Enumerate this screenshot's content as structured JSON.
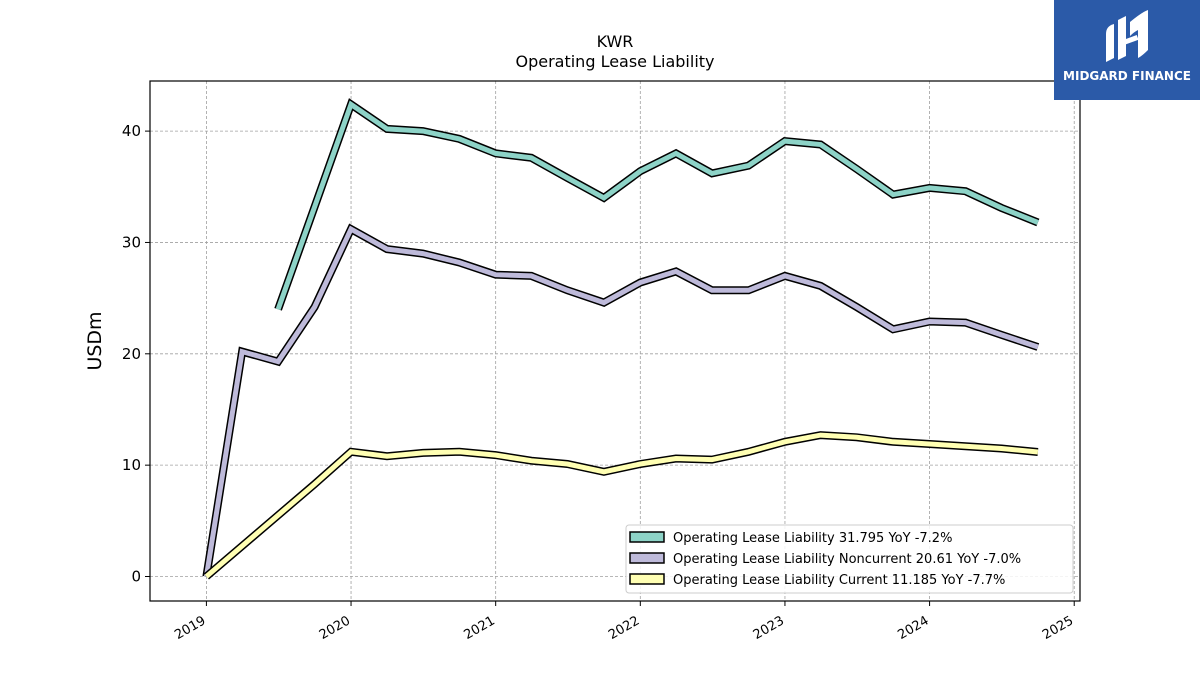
{
  "chart_data": {
    "type": "line",
    "title": "KWR",
    "subtitle": "Operating Lease Liability",
    "ylabel": "USDm",
    "xlabel": "",
    "ylim": [
      -2.2,
      44.5
    ],
    "xlim": [
      2018.61,
      2025.04
    ],
    "yticks": [
      0,
      10,
      20,
      30,
      40
    ],
    "xticks": [
      "2019",
      "2020",
      "2021",
      "2022",
      "2023",
      "2024",
      "2025"
    ],
    "grid": true,
    "legend_position": "lower-right",
    "series": [
      {
        "name": "Operating Lease Liability",
        "legend_label": "Operating Lease Liability  31.795 YoY -7.2%",
        "color": "#8dd3c7",
        "x": [
          "2019-07-01",
          "2019-10-01",
          "2020-01-01",
          "2020-04-01",
          "2020-07-01",
          "2020-10-01",
          "2021-01-01",
          "2021-04-01",
          "2021-07-01",
          "2021-10-01",
          "2022-01-01",
          "2022-04-01",
          "2022-07-01",
          "2022-10-01",
          "2023-01-01",
          "2023-04-01",
          "2023-07-01",
          "2023-10-01",
          "2024-01-01",
          "2024-04-01",
          "2024-07-01",
          "2024-10-01"
        ],
        "values": [
          24.0,
          33.2,
          42.4,
          40.2,
          40.0,
          39.3,
          38.0,
          37.6,
          35.8,
          34.0,
          36.4,
          38.0,
          36.2,
          36.9,
          39.1,
          38.8,
          36.6,
          34.3,
          34.9,
          34.6,
          33.1,
          31.795
        ]
      },
      {
        "name": "Operating Lease Liability Noncurrent",
        "legend_label": "Operating Lease Liability Noncurrent  20.61 YoY -7.0%",
        "color": "#bebada",
        "x": [
          "2019-01-01",
          "2019-04-01",
          "2019-07-01",
          "2019-10-01",
          "2020-01-01",
          "2020-04-01",
          "2020-07-01",
          "2020-10-01",
          "2021-01-01",
          "2021-04-01",
          "2021-07-01",
          "2021-10-01",
          "2022-01-01",
          "2022-04-01",
          "2022-07-01",
          "2022-10-01",
          "2023-01-01",
          "2023-04-01",
          "2023-07-01",
          "2023-10-01",
          "2024-01-01",
          "2024-04-01",
          "2024-07-01",
          "2024-10-01"
        ],
        "values": [
          0.0,
          20.2,
          19.3,
          24.2,
          31.2,
          29.4,
          29.0,
          28.2,
          27.1,
          27.0,
          25.7,
          24.6,
          26.4,
          27.4,
          25.7,
          25.7,
          27.0,
          26.1,
          24.2,
          22.2,
          22.9,
          22.8,
          21.7,
          20.61
        ]
      },
      {
        "name": "Operating Lease Liability Current",
        "legend_label": "Operating Lease Liability Current  11.185 YoY -7.7%",
        "color": "#ffffb3",
        "x": [
          "2019-01-01",
          "2019-10-01",
          "2020-01-01",
          "2020-04-01",
          "2020-07-01",
          "2020-10-01",
          "2021-01-01",
          "2021-04-01",
          "2021-07-01",
          "2021-10-01",
          "2022-01-01",
          "2022-04-01",
          "2022-07-01",
          "2022-10-01",
          "2023-01-01",
          "2023-04-01",
          "2023-07-01",
          "2023-10-01",
          "2024-01-01",
          "2024-04-01",
          "2024-07-01",
          "2024-10-01"
        ],
        "values": [
          0.0,
          8.3,
          11.2,
          10.8,
          11.1,
          11.2,
          10.9,
          10.4,
          10.1,
          9.4,
          10.1,
          10.6,
          10.5,
          11.2,
          12.1,
          12.7,
          12.5,
          12.1,
          11.9,
          11.7,
          11.5,
          11.185
        ]
      }
    ]
  },
  "logo": {
    "text": "MIDGARD FINANCE",
    "background": "#2b5aa8"
  }
}
